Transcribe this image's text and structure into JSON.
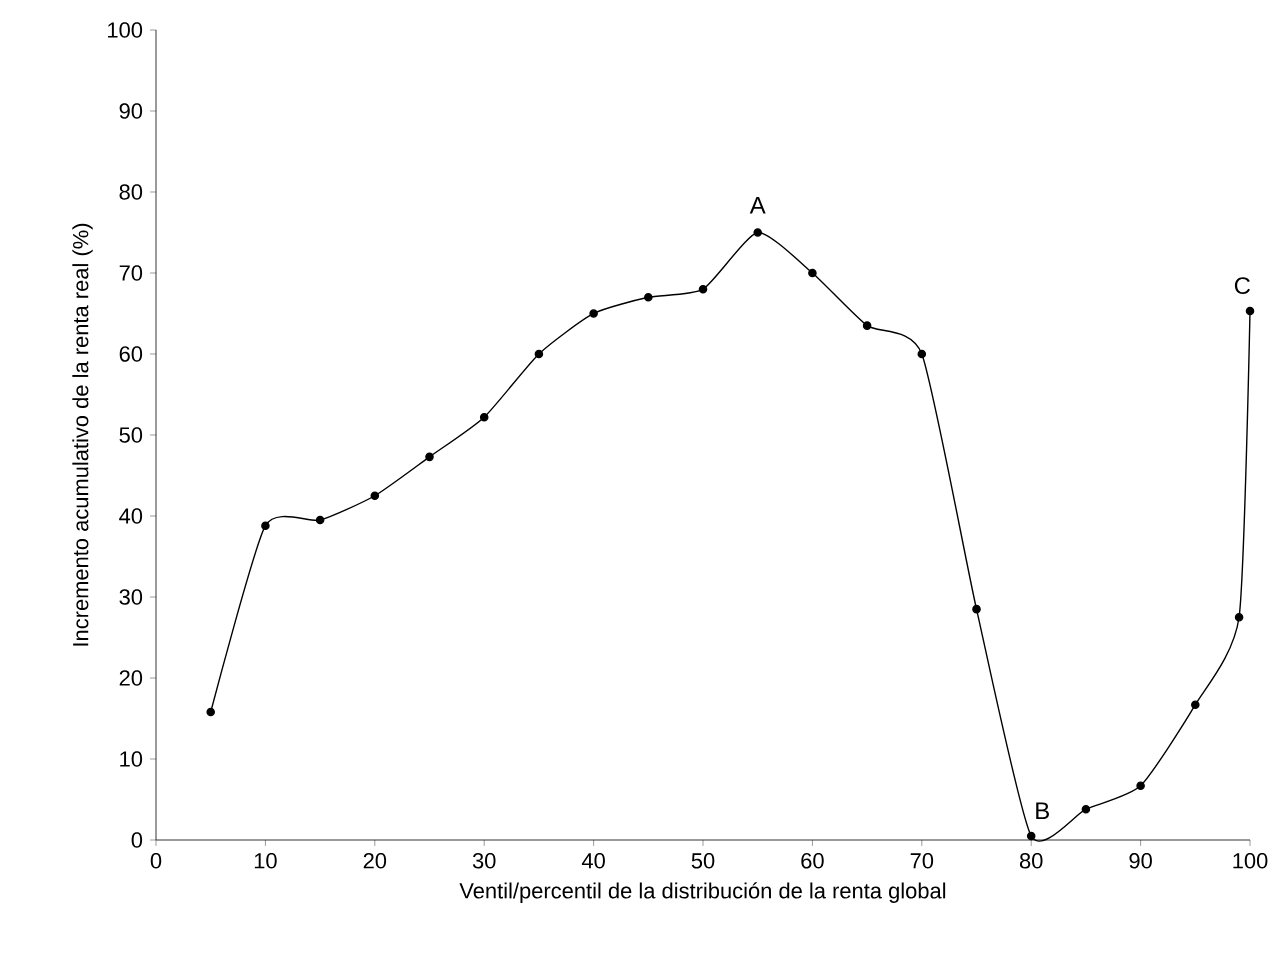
{
  "chart_data": {
    "type": "line",
    "xlabel": "Ventil/percentil de la distribución de la renta global",
    "ylabel": "Incremento acumulativo de la renta real (%)",
    "x": [
      5,
      10,
      15,
      20,
      25,
      30,
      35,
      40,
      45,
      50,
      55,
      60,
      65,
      70,
      75,
      80,
      85,
      90,
      95,
      99,
      100
    ],
    "series": [
      {
        "color": "#000000",
        "values": [
          15.8,
          38.8,
          39.5,
          42.5,
          47.3,
          52.2,
          60,
          65,
          67,
          68,
          75,
          70,
          63.5,
          60,
          28.5,
          0.5,
          3.8,
          6.7,
          16.7,
          27.5,
          65.3
        ]
      }
    ],
    "xlim": [
      0,
      100
    ],
    "ylim": [
      0,
      100
    ],
    "xticks": [
      0,
      10,
      20,
      30,
      40,
      50,
      60,
      70,
      80,
      90,
      100
    ],
    "yticks": [
      0,
      10,
      20,
      30,
      40,
      50,
      60,
      70,
      80,
      90,
      100
    ],
    "annotations": [
      {
        "text": "A",
        "x": 55,
        "y": 75
      },
      {
        "text": "B",
        "x": 80,
        "y": 0.5
      },
      {
        "text": "C",
        "x": 100,
        "y": 65.3
      }
    ],
    "grid": false,
    "marker": "circle",
    "line_style": "solid"
  }
}
